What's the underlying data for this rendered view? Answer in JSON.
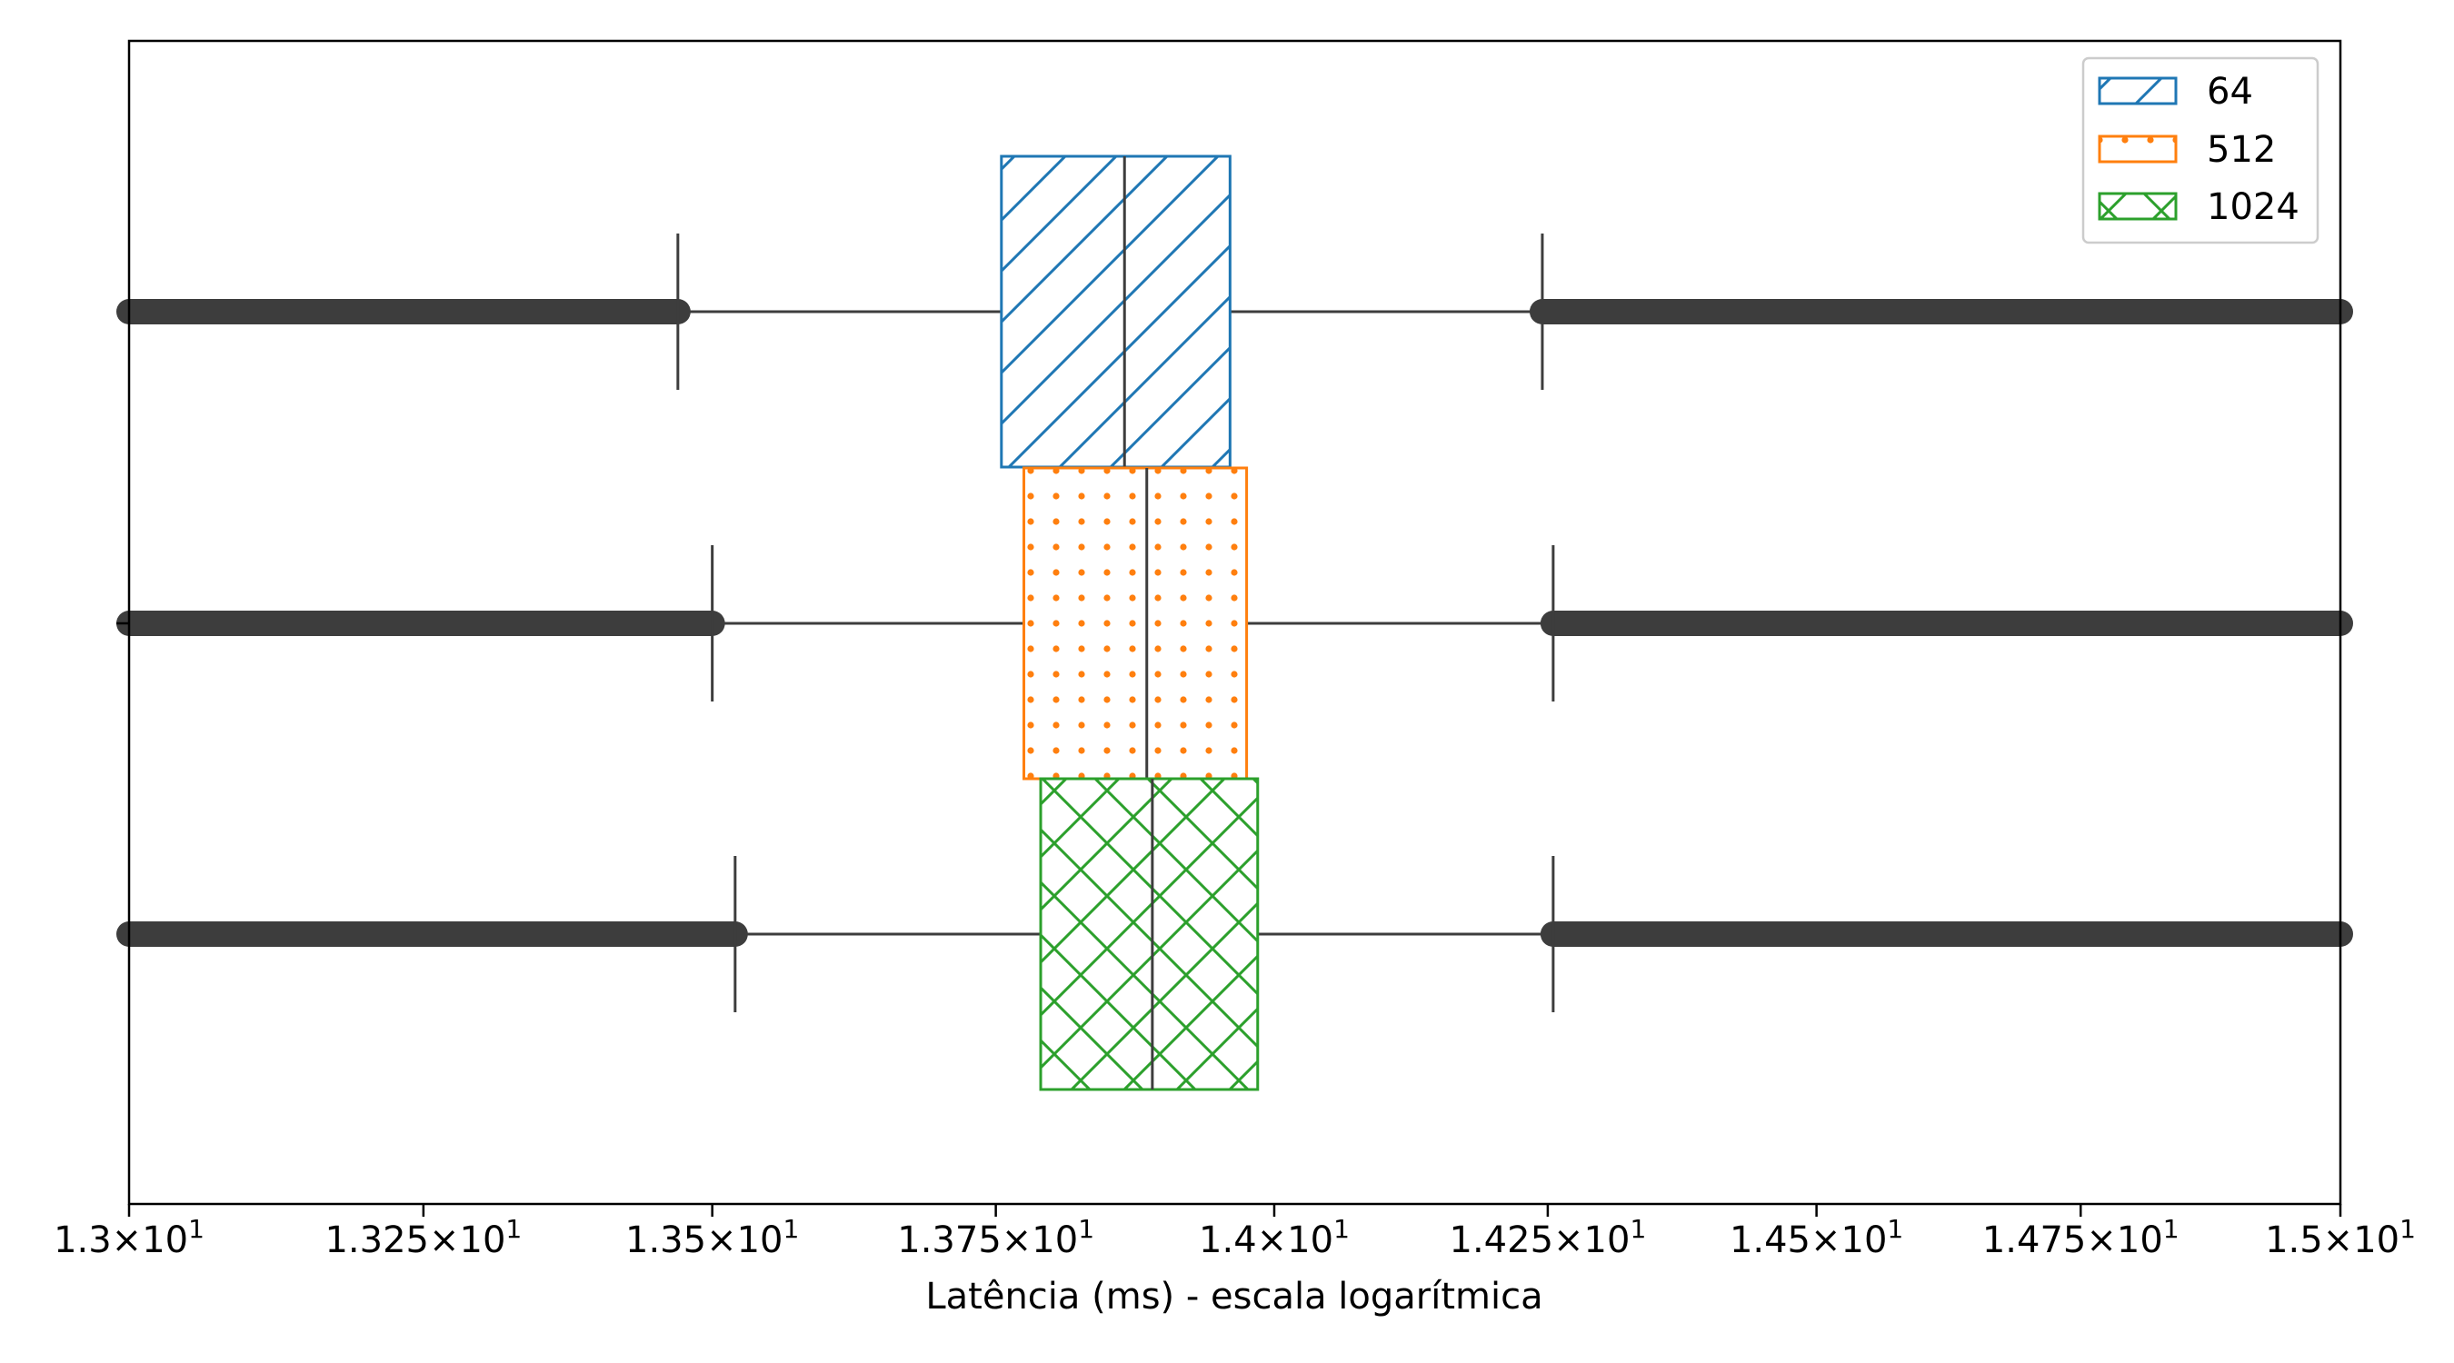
{
  "chart_data": {
    "type": "boxplot",
    "orientation": "horizontal",
    "xlabel": "Latência (ms) - escala logarítmica",
    "ylabel": "",
    "xscale": "log",
    "xlim": [
      13.0,
      15.0
    ],
    "xticks": [
      13.0,
      13.25,
      13.5,
      13.75,
      14.0,
      14.25,
      14.5,
      14.75,
      15.0
    ],
    "xtick_labels": [
      {
        "mantissa": "1.3",
        "times": "×",
        "base": "10",
        "exp": "1"
      },
      {
        "mantissa": "1.325",
        "times": "×",
        "base": "10",
        "exp": "1"
      },
      {
        "mantissa": "1.35",
        "times": "×",
        "base": "10",
        "exp": "1"
      },
      {
        "mantissa": "1.375",
        "times": "×",
        "base": "10",
        "exp": "1"
      },
      {
        "mantissa": "1.4",
        "times": "×",
        "base": "10",
        "exp": "1"
      },
      {
        "mantissa": "1.425",
        "times": "×",
        "base": "10",
        "exp": "1"
      },
      {
        "mantissa": "1.45",
        "times": "×",
        "base": "10",
        "exp": "1"
      },
      {
        "mantissa": "1.475",
        "times": "×",
        "base": "10",
        "exp": "1"
      },
      {
        "mantissa": "1.5",
        "times": "×",
        "base": "10",
        "exp": "1"
      }
    ],
    "grid": false,
    "legend_position": "top-right",
    "series": [
      {
        "name": "64",
        "color": "#1f77b4",
        "hatch": "diagonal",
        "whisker_low": 13.47,
        "q1": 13.755,
        "median": 13.865,
        "q3": 13.96,
        "whisker_high": 14.245,
        "outliers_low": [
          13.0,
          13.47
        ],
        "outliers_high": [
          14.245,
          15.0
        ]
      },
      {
        "name": "512",
        "color": "#ff7f0e",
        "hatch": "dots",
        "whisker_low": 13.5,
        "q1": 13.775,
        "median": 13.885,
        "q3": 13.975,
        "whisker_high": 14.255,
        "outliers_low": [
          13.0,
          13.5
        ],
        "outliers_high": [
          14.255,
          15.0
        ]
      },
      {
        "name": "1024",
        "color": "#2ca02c",
        "hatch": "crosshatch",
        "whisker_low": 13.52,
        "q1": 13.79,
        "median": 13.89,
        "q3": 13.985,
        "whisker_high": 14.255,
        "outliers_low": [
          13.0,
          13.52
        ],
        "outliers_high": [
          14.255,
          15.0
        ]
      }
    ]
  }
}
